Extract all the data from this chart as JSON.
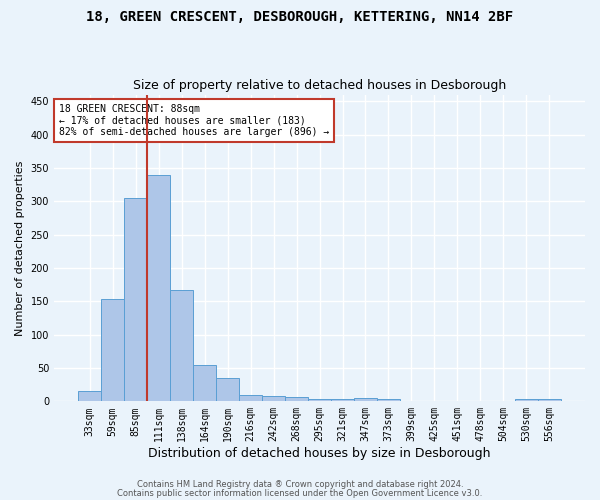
{
  "title1": "18, GREEN CRESCENT, DESBOROUGH, KETTERING, NN14 2BF",
  "title2": "Size of property relative to detached houses in Desborough",
  "xlabel": "Distribution of detached houses by size in Desborough",
  "ylabel": "Number of detached properties",
  "categories": [
    "33sqm",
    "59sqm",
    "85sqm",
    "111sqm",
    "138sqm",
    "164sqm",
    "190sqm",
    "216sqm",
    "242sqm",
    "268sqm",
    "295sqm",
    "321sqm",
    "347sqm",
    "373sqm",
    "399sqm",
    "425sqm",
    "451sqm",
    "478sqm",
    "504sqm",
    "530sqm",
    "556sqm"
  ],
  "values": [
    15,
    153,
    305,
    340,
    167,
    55,
    35,
    9,
    8,
    6,
    3,
    4,
    5,
    4,
    0,
    0,
    0,
    0,
    0,
    4,
    4
  ],
  "bar_color": "#aec6e8",
  "bar_edge_color": "#5a9fd4",
  "vline_color": "#c0392b",
  "vline_pos": 2.5,
  "annotation_text": "18 GREEN CRESCENT: 88sqm\n← 17% of detached houses are smaller (183)\n82% of semi-detached houses are larger (896) →",
  "annotation_box_color": "white",
  "annotation_box_edge_color": "#c0392b",
  "footnote1": "Contains HM Land Registry data ® Crown copyright and database right 2024.",
  "footnote2": "Contains public sector information licensed under the Open Government Licence v3.0.",
  "bg_color": "#eaf3fb",
  "plot_bg_color": "#eaf3fb",
  "ylim": [
    0,
    460
  ],
  "grid_color": "white",
  "title1_fontsize": 10,
  "title2_fontsize": 9,
  "xlabel_fontsize": 9,
  "ylabel_fontsize": 8,
  "tick_fontsize": 7,
  "annotation_fontsize": 7,
  "footnote_fontsize": 6
}
